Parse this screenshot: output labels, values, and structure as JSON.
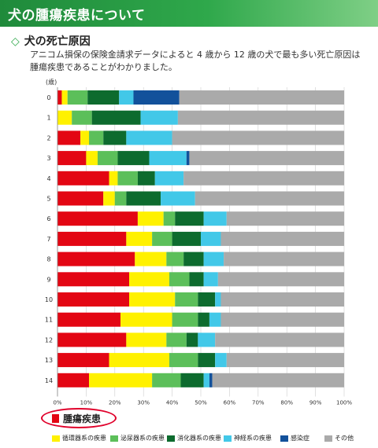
{
  "header": {
    "title": "犬の腫瘍疾患について"
  },
  "section": {
    "title": "犬の死亡原因"
  },
  "description": "アニコム損保の保険金請求データによると 4 歳から 12 歳の犬で最も多い死亡原因は腫瘍疾患であることがわかりました。",
  "colors": {
    "tumor": "#e30613",
    "circulatory": "#fff100",
    "urinary": "#5cbf5a",
    "digestive": "#0d6b2e",
    "nervous": "#42c8e8",
    "infection": "#12519b",
    "other": "#aaaaaa"
  },
  "chart_data": {
    "type": "bar",
    "orientation": "horizontal",
    "stacked": true,
    "ylabel": "(歳)",
    "categories": [
      "0",
      "1",
      "2",
      "3",
      "4",
      "5",
      "6",
      "7",
      "8",
      "9",
      "10",
      "11",
      "12",
      "13",
      "14"
    ],
    "xlim": [
      0,
      100
    ],
    "x_ticks": [
      "0%",
      "10%",
      "20%",
      "30%",
      "40%",
      "50%",
      "60%",
      "70%",
      "80%",
      "90%",
      "100%"
    ],
    "grid": true,
    "series": [
      {
        "name": "腫瘍疾患",
        "color": "#e30613",
        "values": [
          1.5,
          0,
          8,
          10,
          18,
          16,
          28,
          24,
          27,
          25,
          25,
          22,
          24,
          18,
          11
        ]
      },
      {
        "name": "循環器系の疾患",
        "color": "#fff100",
        "values": [
          2,
          5,
          3,
          4,
          3,
          4,
          9,
          9,
          11,
          14,
          16,
          18,
          14,
          21,
          22
        ]
      },
      {
        "name": "泌尿器系の疾患",
        "color": "#5cbf5a",
        "values": [
          7,
          7,
          5,
          7,
          7,
          4,
          4,
          7,
          6,
          7,
          8,
          9,
          7,
          10,
          10
        ]
      },
      {
        "name": "消化器系の疾患",
        "color": "#0d6b2e",
        "values": [
          11,
          17,
          8,
          11,
          6,
          12,
          10,
          10,
          7,
          5,
          6,
          4,
          4,
          6,
          8
        ]
      },
      {
        "name": "神経系の疾患",
        "color": "#42c8e8",
        "values": [
          5,
          13,
          16,
          13,
          10,
          12,
          8,
          7,
          7,
          5,
          2,
          4,
          6,
          4,
          2
        ]
      },
      {
        "name": "感染症",
        "color": "#12519b",
        "values": [
          16,
          0,
          0,
          1,
          0,
          0,
          0,
          0,
          0,
          0,
          0,
          0,
          0,
          0,
          1
        ]
      },
      {
        "name": "その他",
        "color": "#aaaaaa",
        "values": [
          57.5,
          58,
          60,
          54,
          56,
          52,
          41,
          43,
          42,
          44,
          43,
          43,
          45,
          41,
          46
        ]
      }
    ]
  },
  "legend": {
    "highlight": "腫瘍疾患",
    "items": [
      {
        "label": "循環器系の疾患",
        "color": "#fff100"
      },
      {
        "label": "泌尿器系の疾患",
        "color": "#5cbf5a"
      },
      {
        "label": "消化器系の疾患",
        "color": "#0d6b2e"
      },
      {
        "label": "神経系の疾患",
        "color": "#42c8e8"
      },
      {
        "label": "感染症",
        "color": "#12519b"
      },
      {
        "label": "その他",
        "color": "#aaaaaa"
      }
    ]
  }
}
